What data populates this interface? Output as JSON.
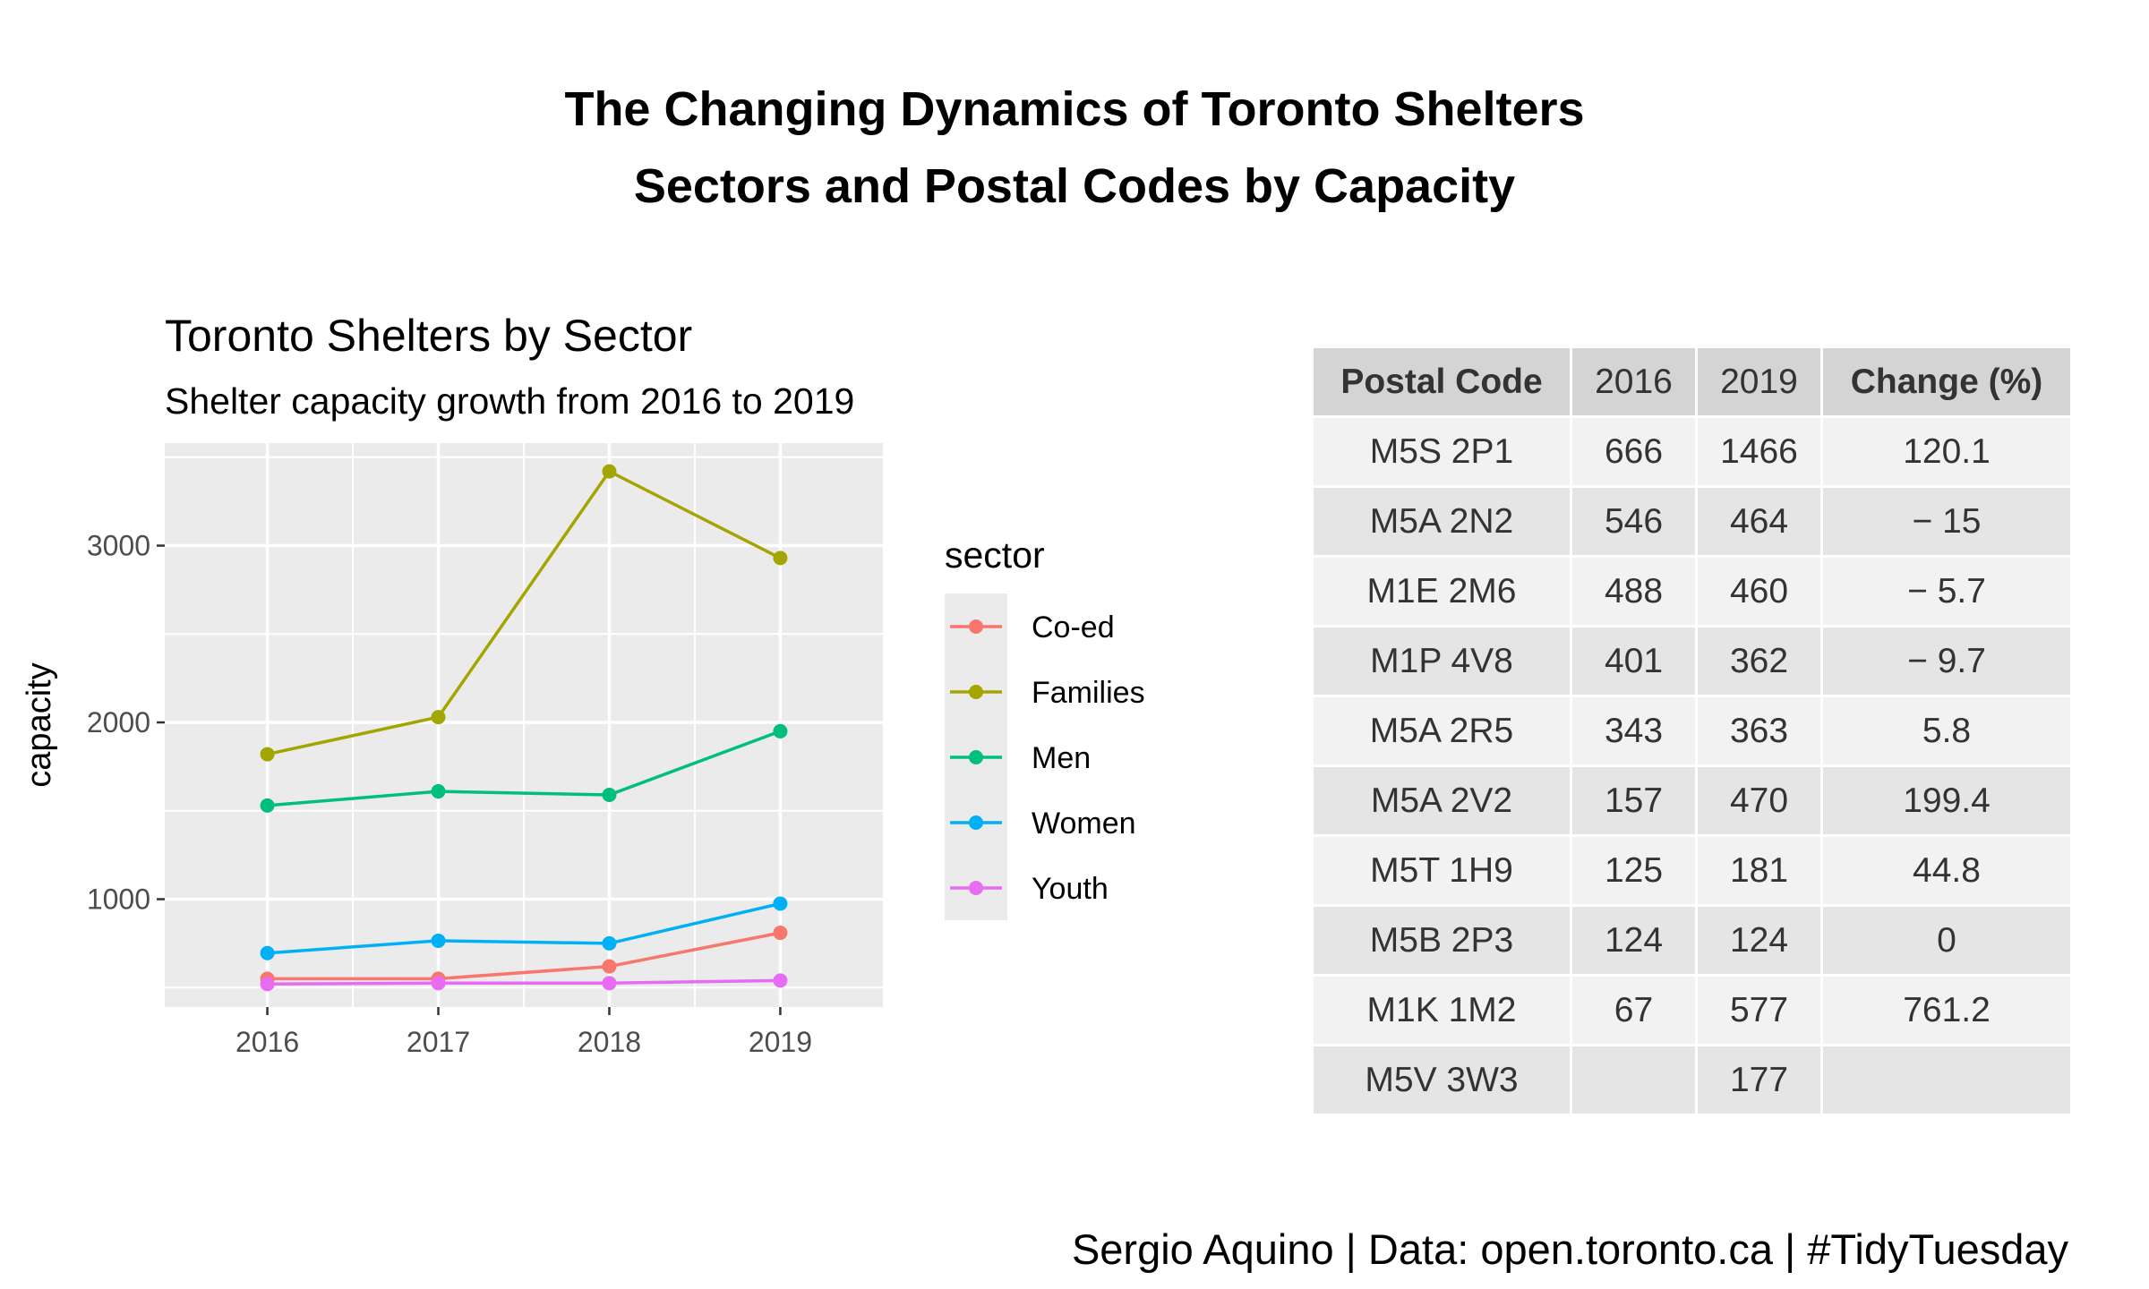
{
  "main_title": [
    "The Changing Dynamics of Toronto Shelters",
    "Sectors and Postal Codes by Capacity"
  ],
  "chart_data": {
    "type": "line",
    "title": "Toronto Shelters by Sector",
    "subtitle": "Shelter capacity growth from 2016 to 2019",
    "xlabel": "",
    "ylabel": "capacity",
    "x": [
      2016,
      2017,
      2018,
      2019
    ],
    "x_tick_labels": [
      "2016",
      "2017",
      "2018",
      "2019"
    ],
    "xlim": [
      2015.4,
      2019.6
    ],
    "y_ticks": [
      1000,
      2000,
      3000
    ],
    "y_tick_labels": [
      "1000",
      "2000",
      "3000"
    ],
    "ylim": [
      390,
      3580
    ],
    "grid": true,
    "legend": {
      "title": "sector",
      "position": "right"
    },
    "series": [
      {
        "name": "Co-ed",
        "color": "#F8766D",
        "values": [
          550,
          550,
          620,
          810
        ]
      },
      {
        "name": "Families",
        "color": "#A3A500",
        "values": [
          1820,
          2030,
          3420,
          2930
        ]
      },
      {
        "name": "Men",
        "color": "#00BF7D",
        "values": [
          1530,
          1610,
          1590,
          1950
        ]
      },
      {
        "name": "Women",
        "color": "#00B0F6",
        "values": [
          695,
          765,
          750,
          975
        ]
      },
      {
        "name": "Youth",
        "color": "#E76BF3",
        "values": [
          520,
          525,
          525,
          540
        ]
      }
    ]
  },
  "table": {
    "headers": [
      "Postal Code",
      "2016",
      "2019",
      "Change (%)"
    ],
    "rows": [
      [
        "M5S 2P1",
        "666",
        "1466",
        "120.1"
      ],
      [
        "M5A 2N2",
        "546",
        "464",
        "− 15"
      ],
      [
        "M1E 2M6",
        "488",
        "460",
        "− 5.7"
      ],
      [
        "M1P 4V8",
        "401",
        "362",
        "− 9.7"
      ],
      [
        "M5A 2R5",
        "343",
        "363",
        "5.8"
      ],
      [
        "M5A 2V2",
        "157",
        "470",
        "199.4"
      ],
      [
        "M5T 1H9",
        "125",
        "181",
        "44.8"
      ],
      [
        "M5B 2P3",
        "124",
        "124",
        "0"
      ],
      [
        "M1K 1M2",
        "67",
        "577",
        "761.2"
      ],
      [
        "M5V 3W3",
        "",
        "177",
        ""
      ]
    ]
  },
  "caption": "Sergio Aquino | Data: open.toronto.ca | #TidyTuesday"
}
